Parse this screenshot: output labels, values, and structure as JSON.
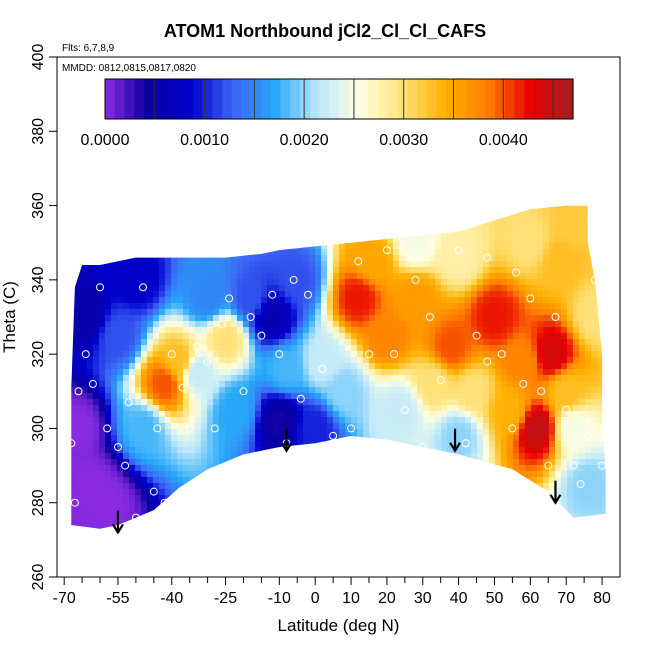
{
  "chart_data": {
    "type": "heatmap",
    "title": "ATOM1 Northbound jCl2_Cl_Cl_CAFS",
    "annotations": {
      "flights": "Flts: 6,7,8,9",
      "dates": "MMDD: 0812,0815,0817,0820"
    },
    "xlabel": "Latitude (deg N)",
    "ylabel": "Theta (C)",
    "xlim": [
      -72,
      85
    ],
    "ylim": [
      260,
      400
    ],
    "x_ticks": [
      -70,
      -55,
      -40,
      -25,
      -10,
      0,
      10,
      20,
      30,
      40,
      50,
      60,
      70,
      80
    ],
    "x_tick_labels": [
      "-70",
      "-55",
      "-40",
      "-25",
      "-10",
      "0",
      "10",
      "20",
      "30",
      "40",
      "50",
      "60",
      "70",
      "80"
    ],
    "x_minor_ticks": [
      -65,
      -60,
      -50,
      -45,
      -35,
      -30,
      -20,
      -15,
      -5,
      5,
      15,
      25,
      35,
      45,
      55,
      65,
      75
    ],
    "y_ticks": [
      260,
      280,
      300,
      320,
      340,
      360,
      380,
      400
    ],
    "y_tick_labels": [
      "260",
      "280",
      "300",
      "320",
      "340",
      "360",
      "380",
      "400"
    ],
    "colorbar": {
      "range": [
        0,
        0.0047
      ],
      "tick_values": [
        0,
        0.001,
        0.002,
        0.003,
        0.004
      ],
      "tick_labels": [
        "0.0000",
        "0.0010",
        "0.0020",
        "0.0030",
        "0.0040"
      ],
      "colors": [
        "#8a2be2",
        "#0a00a0",
        "#0000cd",
        "#3c64f5",
        "#28a8f8",
        "#bde8fb",
        "#ffffe0",
        "#ffe27a",
        "#ffb000",
        "#ff8000",
        "#e80000",
        "#a02020"
      ]
    },
    "region_outline": [
      [
        -68,
        311
      ],
      [
        -67,
        338
      ],
      [
        -65,
        344
      ],
      [
        -60,
        344
      ],
      [
        -50,
        346
      ],
      [
        -42,
        346
      ],
      [
        -25,
        346
      ],
      [
        -15,
        347
      ],
      [
        -10,
        348
      ],
      [
        0,
        349
      ],
      [
        10,
        350
      ],
      [
        20,
        351
      ],
      [
        30,
        352
      ],
      [
        40,
        353
      ],
      [
        50,
        356
      ],
      [
        60,
        359
      ],
      [
        70,
        360
      ],
      [
        76,
        360
      ],
      [
        76,
        350
      ],
      [
        78,
        340
      ],
      [
        79,
        330
      ],
      [
        80,
        320
      ],
      [
        80,
        310
      ],
      [
        80,
        300
      ],
      [
        81,
        290
      ],
      [
        81,
        277
      ],
      [
        72,
        276
      ],
      [
        65,
        283
      ],
      [
        55,
        289
      ],
      [
        40,
        293
      ],
      [
        30,
        295
      ],
      [
        20,
        297
      ],
      [
        10,
        298
      ],
      [
        0,
        296
      ],
      [
        -10,
        295
      ],
      [
        -20,
        293
      ],
      [
        -30,
        289
      ],
      [
        -38,
        284
      ],
      [
        -45,
        278
      ],
      [
        -50,
        276
      ],
      [
        -55,
        274
      ],
      [
        -60,
        273
      ],
      [
        -68,
        274
      ]
    ],
    "anchors": [
      {
        "lat": -66,
        "theta": 300,
        "value": 0.0
      },
      {
        "lat": -62,
        "theta": 285,
        "value": 0.0
      },
      {
        "lat": -58,
        "theta": 280,
        "value": 0.0
      },
      {
        "lat": -64,
        "theta": 330,
        "value": 0.0005
      },
      {
        "lat": -55,
        "theta": 325,
        "value": 0.0012
      },
      {
        "lat": -50,
        "theta": 340,
        "value": 0.0008
      },
      {
        "lat": -48,
        "theta": 300,
        "value": 0.0018
      },
      {
        "lat": -42,
        "theta": 312,
        "value": 0.004
      },
      {
        "lat": -38,
        "theta": 318,
        "value": 0.0033
      },
      {
        "lat": -33,
        "theta": 315,
        "value": 0.0022
      },
      {
        "lat": -30,
        "theta": 335,
        "value": 0.0015
      },
      {
        "lat": -25,
        "theta": 324,
        "value": 0.003
      },
      {
        "lat": -22,
        "theta": 305,
        "value": 0.0017
      },
      {
        "lat": -18,
        "theta": 335,
        "value": 0.0012
      },
      {
        "lat": -12,
        "theta": 330,
        "value": 0.0006
      },
      {
        "lat": -10,
        "theta": 302,
        "value": 0.0004
      },
      {
        "lat": -8,
        "theta": 316,
        "value": 0.0018
      },
      {
        "lat": -5,
        "theta": 340,
        "value": 0.0012
      },
      {
        "lat": 0,
        "theta": 300,
        "value": 0.001
      },
      {
        "lat": 2,
        "theta": 318,
        "value": 0.0022
      },
      {
        "lat": 8,
        "theta": 310,
        "value": 0.002
      },
      {
        "lat": 12,
        "theta": 335,
        "value": 0.0042
      },
      {
        "lat": 16,
        "theta": 345,
        "value": 0.0035
      },
      {
        "lat": 20,
        "theta": 325,
        "value": 0.0038
      },
      {
        "lat": 24,
        "theta": 305,
        "value": 0.0022
      },
      {
        "lat": 28,
        "theta": 335,
        "value": 0.0036
      },
      {
        "lat": 33,
        "theta": 312,
        "value": 0.003
      },
      {
        "lat": 38,
        "theta": 322,
        "value": 0.004
      },
      {
        "lat": 40,
        "theta": 298,
        "value": 0.002
      },
      {
        "lat": 44,
        "theta": 310,
        "value": 0.003
      },
      {
        "lat": 50,
        "theta": 330,
        "value": 0.0042
      },
      {
        "lat": 54,
        "theta": 305,
        "value": 0.0034
      },
      {
        "lat": 58,
        "theta": 318,
        "value": 0.0038
      },
      {
        "lat": 62,
        "theta": 300,
        "value": 0.0045
      },
      {
        "lat": 66,
        "theta": 320,
        "value": 0.0044
      },
      {
        "lat": 70,
        "theta": 310,
        "value": 0.0033
      },
      {
        "lat": 72,
        "theta": 300,
        "value": 0.0025
      },
      {
        "lat": 68,
        "theta": 345,
        "value": 0.0033
      },
      {
        "lat": 72,
        "theta": 355,
        "value": 0.0032
      },
      {
        "lat": 60,
        "theta": 350,
        "value": 0.003
      },
      {
        "lat": 40,
        "theta": 346,
        "value": 0.0028
      },
      {
        "lat": 28,
        "theta": 350,
        "value": 0.0025
      },
      {
        "lat": 76,
        "theta": 285,
        "value": 0.002
      },
      {
        "lat": 78,
        "theta": 330,
        "value": 0.003
      }
    ],
    "observations": [
      [
        -66,
        310
      ],
      [
        -64,
        320
      ],
      [
        -62,
        312
      ],
      [
        -60,
        338
      ],
      [
        -58,
        300
      ],
      [
        -55,
        295
      ],
      [
        -53,
        290
      ],
      [
        -52,
        307
      ],
      [
        -48,
        338
      ],
      [
        -45,
        283
      ],
      [
        -44,
        300
      ],
      [
        -40,
        320
      ],
      [
        -37,
        311
      ],
      [
        -35,
        300
      ],
      [
        -33,
        322
      ],
      [
        -30,
        318
      ],
      [
        -28,
        300
      ],
      [
        -26,
        328
      ],
      [
        -24,
        335
      ],
      [
        -20,
        310
      ],
      [
        -18,
        330
      ],
      [
        -15,
        325
      ],
      [
        -12,
        336
      ],
      [
        -10,
        320
      ],
      [
        -8,
        296
      ],
      [
        -6,
        340
      ],
      [
        -4,
        308
      ],
      [
        -2,
        336
      ],
      [
        2,
        316
      ],
      [
        5,
        298
      ],
      [
        10,
        300
      ],
      [
        12,
        345
      ],
      [
        15,
        320
      ],
      [
        20,
        348
      ],
      [
        22,
        320
      ],
      [
        25,
        305
      ],
      [
        28,
        340
      ],
      [
        30,
        295
      ],
      [
        32,
        330
      ],
      [
        35,
        313
      ],
      [
        40,
        348
      ],
      [
        42,
        296
      ],
      [
        45,
        325
      ],
      [
        48,
        318
      ],
      [
        52,
        320
      ],
      [
        55,
        300
      ],
      [
        58,
        312
      ],
      [
        60,
        335
      ],
      [
        63,
        310
      ],
      [
        65,
        290
      ],
      [
        67,
        330
      ],
      [
        70,
        305
      ],
      [
        72,
        290
      ],
      [
        74,
        285
      ],
      [
        76,
        298
      ],
      [
        78,
        340
      ],
      [
        80,
        290
      ],
      [
        -50,
        276
      ],
      [
        -42,
        280
      ],
      [
        -68,
        296
      ],
      [
        -67,
        280
      ],
      [
        56,
        342
      ],
      [
        48,
        346
      ]
    ],
    "arrows": [
      {
        "lat": -55,
        "theta": 272
      },
      {
        "lat": -8,
        "theta": 294
      },
      {
        "lat": 39,
        "theta": 294
      },
      {
        "lat": 67,
        "theta": 280
      }
    ]
  }
}
